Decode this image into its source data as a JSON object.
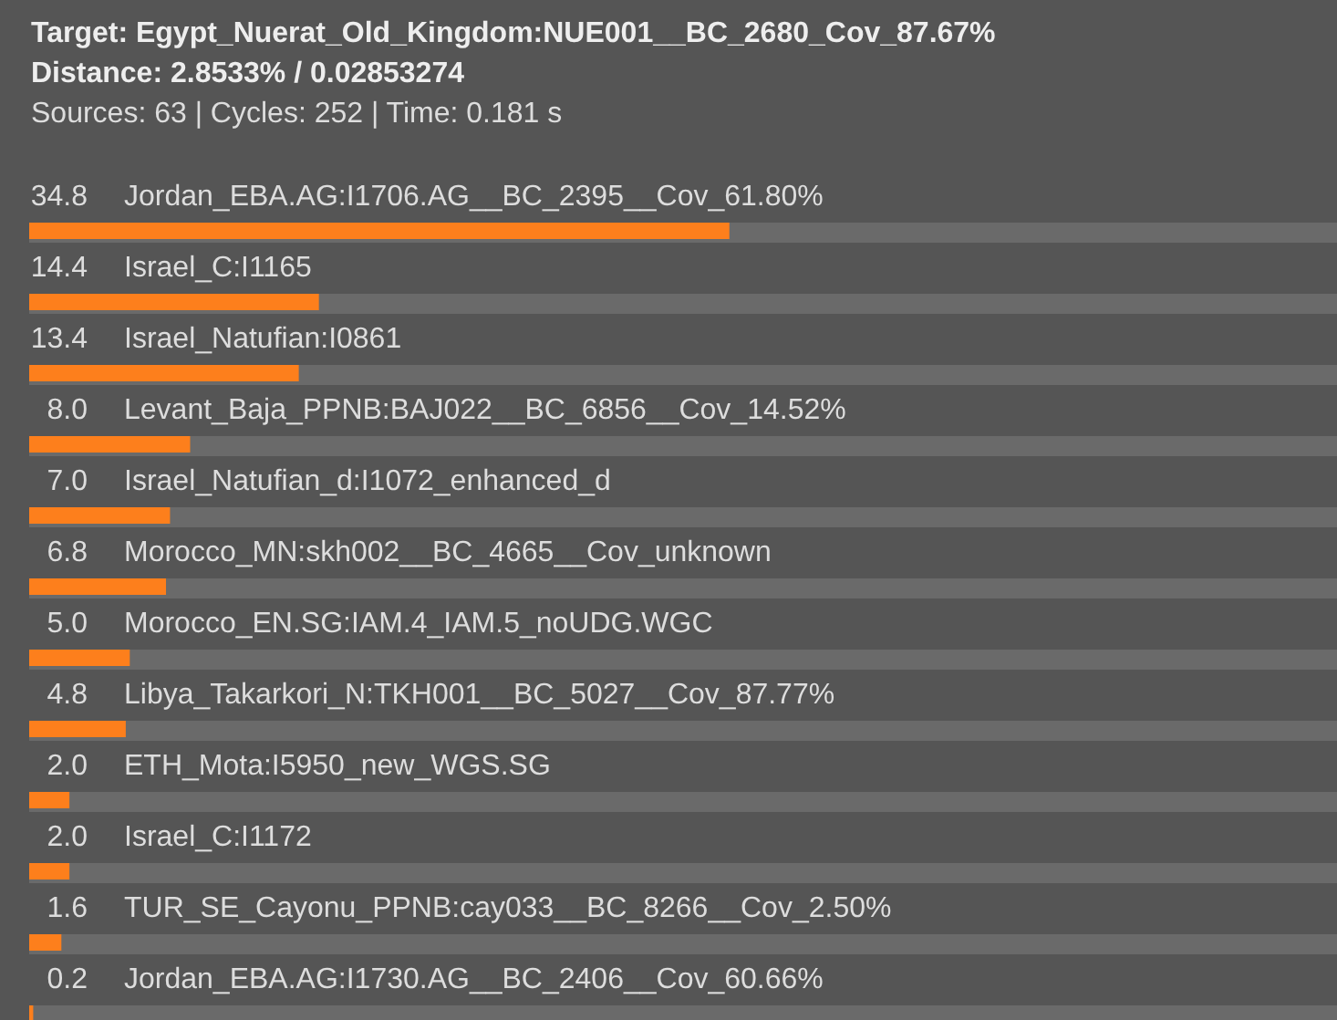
{
  "chart_data": {
    "type": "bar",
    "orientation": "horizontal",
    "title": "Target: Egypt_Nuerat_Old_Kingdom:NUE001__BC_2680_Cov_87.67%",
    "subtitle": "Distance: 2.8533% / 0.02853274",
    "annotations": [
      "Sources: 63 | Cycles: 252 | Time: 0.181 s"
    ],
    "categories": [
      "Jordan_EBA.AG:I1706.AG__BC_2395__Cov_61.80%",
      "Israel_C:I1165",
      "Israel_Natufian:I0861",
      "Levant_Baja_PPNB:BAJ022__BC_6856__Cov_14.52%",
      "Israel_Natufian_d:I1072_enhanced_d",
      "Morocco_MN:skh002__BC_4665__Cov_unknown",
      "Morocco_EN.SG:IAM.4_IAM.5_noUDG.WGC",
      "Libya_Takarkori_N:TKH001__BC_5027__Cov_87.77%",
      "ETH_Mota:I5950_new_WGS.SG",
      "Israel_C:I1172",
      "TUR_SE_Cayonu_PPNB:cay033__BC_8266__Cov_2.50%",
      "Jordan_EBA.AG:I1730.AG__BC_2406__Cov_60.66%"
    ],
    "values": [
      34.8,
      14.4,
      13.4,
      8.0,
      7.0,
      6.8,
      5.0,
      4.8,
      2.0,
      2.0,
      1.6,
      0.2
    ],
    "value_labels": [
      "34.8",
      "14.4",
      "13.4",
      "8.0",
      "7.0",
      "6.8",
      "5.0",
      "4.8",
      "2.0",
      "2.0",
      "1.6",
      "0.2"
    ],
    "color": "#fd7f1c",
    "xlim": [
      0,
      65
    ]
  }
}
